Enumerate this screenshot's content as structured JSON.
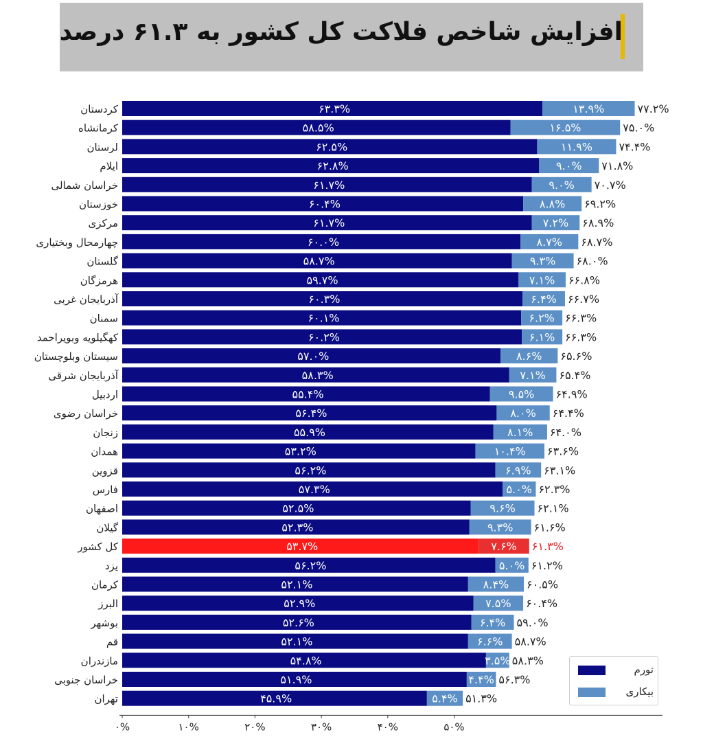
{
  "title": "افزایش شاخص فلاکت کل کشور به ۶۱.۳ درصد",
  "colors": {
    "inflation": "#0a0a82",
    "unemployment": "#5b8fc5",
    "highlight": "#ff1a1a",
    "highlight_text": "#e02020",
    "title_bg": "#c0c0c0",
    "accent": "#e6b800"
  },
  "legend": {
    "inflation": "تورم",
    "unemployment": "بیکاری"
  },
  "chart_data": {
    "type": "bar",
    "stacked": true,
    "orientation": "horizontal",
    "highlight_category": "کل کشور",
    "categories": [
      "کردستان",
      "کرمانشاه",
      "لرستان",
      "ایلام",
      "خراسان شمالی",
      "خوزستان",
      "مرکزی",
      "چهارمحال وبختیاری",
      "گلستان",
      "هرمزگان",
      "آذربایجان غربی",
      "سمنان",
      "کهگیلویه وبویراحمد",
      "سیستان وبلوچستان",
      "آذربایجان شرقی",
      "اردبیل",
      "خراسان رضوی",
      "زنجان",
      "همدان",
      "قزوین",
      "فارس",
      "اصفهان",
      "گیلان",
      "کل کشور",
      "یزد",
      "کرمان",
      "البرز",
      "بوشهر",
      "قم",
      "مازندران",
      "خراسان جنوبی",
      "تهران"
    ],
    "series": [
      {
        "name": "تورم",
        "values": [
          63.3,
          58.5,
          62.5,
          62.8,
          61.7,
          60.4,
          61.7,
          60.0,
          58.7,
          59.7,
          60.3,
          60.1,
          60.2,
          57.0,
          58.3,
          55.4,
          56.4,
          55.9,
          53.2,
          56.2,
          57.3,
          52.5,
          52.3,
          53.7,
          56.2,
          52.1,
          52.9,
          52.6,
          52.1,
          54.8,
          51.9,
          45.9
        ]
      },
      {
        "name": "بیکاری",
        "values": [
          13.9,
          16.5,
          11.9,
          9.0,
          9.0,
          8.8,
          7.2,
          8.7,
          9.3,
          7.1,
          6.4,
          6.2,
          6.1,
          8.6,
          7.1,
          9.5,
          8.0,
          8.1,
          10.4,
          6.9,
          5.0,
          9.6,
          9.3,
          7.6,
          5.0,
          8.4,
          7.5,
          6.4,
          6.6,
          3.5,
          4.4,
          5.4
        ]
      }
    ],
    "value_labels": {
      "inflation": [
        "۶۳.۳%",
        "۵۸.۵%",
        "۶۲.۵%",
        "۶۲.۸%",
        "۶۱.۷%",
        "۶۰.۴%",
        "۶۱.۷%",
        "۶۰.۰%",
        "۵۸.۷%",
        "۵۹.۷%",
        "۶۰.۳%",
        "۶۰.۱%",
        "۶۰.۲%",
        "۵۷.۰%",
        "۵۸.۳%",
        "۵۵.۴%",
        "۵۶.۴%",
        "۵۵.۹%",
        "۵۳.۲%",
        "۵۶.۲%",
        "۵۷.۳%",
        "۵۲.۵%",
        "۵۲.۳%",
        "۵۳.۷%",
        "۵۶.۲%",
        "۵۲.۱%",
        "۵۲.۹%",
        "۵۲.۶%",
        "۵۲.۱%",
        "۵۴.۸%",
        "۵۱.۹%",
        "۴۵.۹%"
      ],
      "unemployment": [
        "۱۳.۹%",
        "۱۶.۵%",
        "۱۱.۹%",
        "۹.۰%",
        "۹.۰%",
        "۸.۸%",
        "۷.۲%",
        "۸.۷%",
        "۹.۳%",
        "۷.۱%",
        "۶.۴%",
        "۶.۲%",
        "۶.۱%",
        "۸.۶%",
        "۷.۱%",
        "۹.۵%",
        "۸.۰%",
        "۸.۱%",
        "۱۰.۴%",
        "۶.۹%",
        "۵.۰%",
        "۹.۶%",
        "۹.۳%",
        "۷.۶%",
        "۵.۰%",
        "۸.۴%",
        "۷.۵%",
        "۶.۴%",
        "۶.۶%",
        "۳.۵%",
        "۴.۴%",
        "۵.۴%"
      ],
      "total": [
        "۷۷.۲%",
        "۷۵.۰%",
        "۷۴.۴%",
        "۷۱.۸%",
        "۷۰.۷%",
        "۶۹.۲%",
        "۶۸.۹%",
        "۶۸.۷%",
        "۶۸.۰%",
        "۶۶.۸%",
        "۶۶.۷%",
        "۶۶.۳%",
        "۶۶.۳%",
        "۶۵.۶%",
        "۶۵.۴%",
        "۶۴.۹%",
        "۶۴.۴%",
        "۶۴.۰%",
        "۶۳.۶%",
        "۶۳.۱%",
        "۶۲.۳%",
        "۶۲.۱%",
        "۶۱.۶%",
        "۶۱.۳%",
        "۶۱.۲%",
        "۶۰.۵%",
        "۶۰.۴%",
        "۵۹.۰%",
        "۵۸.۷%",
        "۵۸.۳%",
        "۵۶.۳%",
        "۵۱.۳%"
      ]
    },
    "x_ticks": [
      0,
      10,
      20,
      30,
      40,
      50
    ],
    "x_tick_labels": [
      "۰%",
      "۱۰%",
      "۲۰%",
      "۳۰%",
      "۴۰%",
      "۵۰%"
    ],
    "xlim": [
      0,
      85
    ],
    "grid": false,
    "legend_position": "bottom-right"
  }
}
